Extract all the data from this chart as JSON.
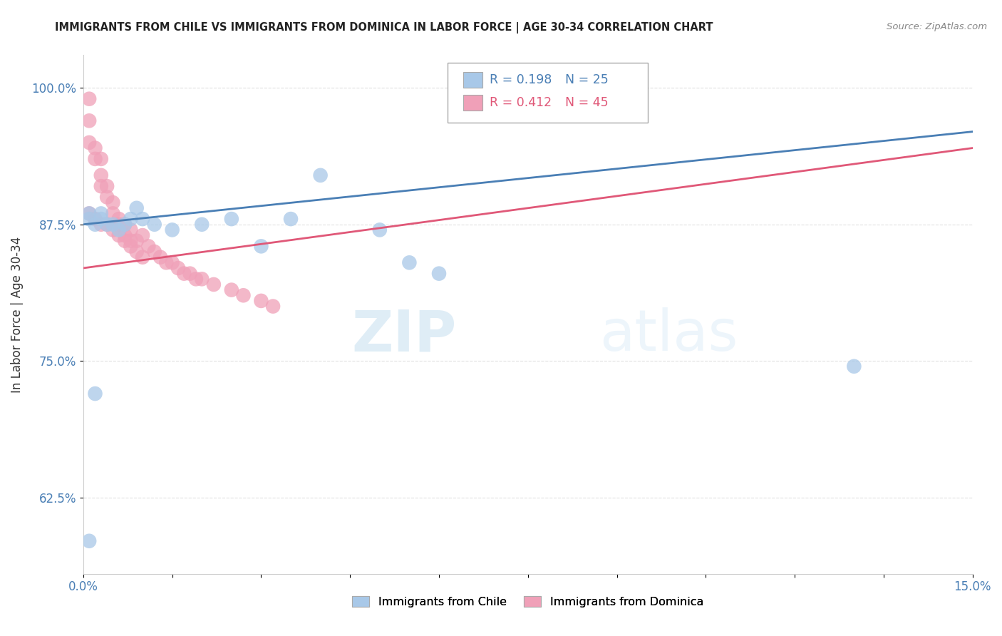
{
  "title": "IMMIGRANTS FROM CHILE VS IMMIGRANTS FROM DOMINICA IN LABOR FORCE | AGE 30-34 CORRELATION CHART",
  "source": "Source: ZipAtlas.com",
  "ylabel": "In Labor Force | Age 30-34",
  "xlim": [
    0.0,
    0.15
  ],
  "ylim": [
    0.555,
    1.03
  ],
  "yticks": [
    0.625,
    0.75,
    0.875,
    1.0
  ],
  "ytick_labels": [
    "62.5%",
    "75.0%",
    "87.5%",
    "100.0%"
  ],
  "xticks": [
    0.0,
    0.015,
    0.03,
    0.045,
    0.06,
    0.075,
    0.09,
    0.105,
    0.12,
    0.135,
    0.15
  ],
  "xtick_labels": [
    "0.0%",
    "",
    "",
    "",
    "",
    "",
    "",
    "",
    "",
    "",
    "15.0%"
  ],
  "chile_color": "#a8c8e8",
  "dominica_color": "#f0a0b8",
  "trend_chile_color": "#4a7fb5",
  "trend_dominica_color": "#e05878",
  "background_color": "#ffffff",
  "grid_color": "#e0e0e0",
  "watermark_zip": "ZIP",
  "watermark_atlas": "atlas",
  "legend_R_chile": "R = 0.198",
  "legend_N_chile": "N = 25",
  "legend_R_dominica": "R = 0.412",
  "legend_N_dominica": "N = 45",
  "chile_x": [
    0.001,
    0.001,
    0.002,
    0.003,
    0.003,
    0.004,
    0.005,
    0.006,
    0.007,
    0.008,
    0.009,
    0.01,
    0.012,
    0.015,
    0.02,
    0.025,
    0.03,
    0.035,
    0.04,
    0.05,
    0.055,
    0.06,
    0.13,
    0.001,
    0.002
  ],
  "chile_y": [
    0.885,
    0.88,
    0.875,
    0.885,
    0.88,
    0.875,
    0.875,
    0.87,
    0.875,
    0.88,
    0.89,
    0.88,
    0.875,
    0.87,
    0.875,
    0.88,
    0.855,
    0.88,
    0.92,
    0.87,
    0.84,
    0.83,
    0.745,
    0.585,
    0.72
  ],
  "dominica_x": [
    0.001,
    0.001,
    0.001,
    0.002,
    0.002,
    0.003,
    0.003,
    0.003,
    0.004,
    0.004,
    0.005,
    0.005,
    0.006,
    0.006,
    0.007,
    0.007,
    0.008,
    0.008,
    0.009,
    0.01,
    0.011,
    0.012,
    0.013,
    0.014,
    0.015,
    0.016,
    0.017,
    0.018,
    0.019,
    0.02,
    0.022,
    0.025,
    0.027,
    0.03,
    0.032,
    0.001,
    0.002,
    0.003,
    0.004,
    0.005,
    0.006,
    0.007,
    0.008,
    0.009,
    0.01
  ],
  "dominica_y": [
    0.99,
    0.97,
    0.95,
    0.945,
    0.935,
    0.935,
    0.92,
    0.91,
    0.91,
    0.9,
    0.895,
    0.885,
    0.88,
    0.875,
    0.875,
    0.865,
    0.87,
    0.86,
    0.86,
    0.865,
    0.855,
    0.85,
    0.845,
    0.84,
    0.84,
    0.835,
    0.83,
    0.83,
    0.825,
    0.825,
    0.82,
    0.815,
    0.81,
    0.805,
    0.8,
    0.885,
    0.88,
    0.875,
    0.875,
    0.87,
    0.865,
    0.86,
    0.855,
    0.85,
    0.845
  ]
}
